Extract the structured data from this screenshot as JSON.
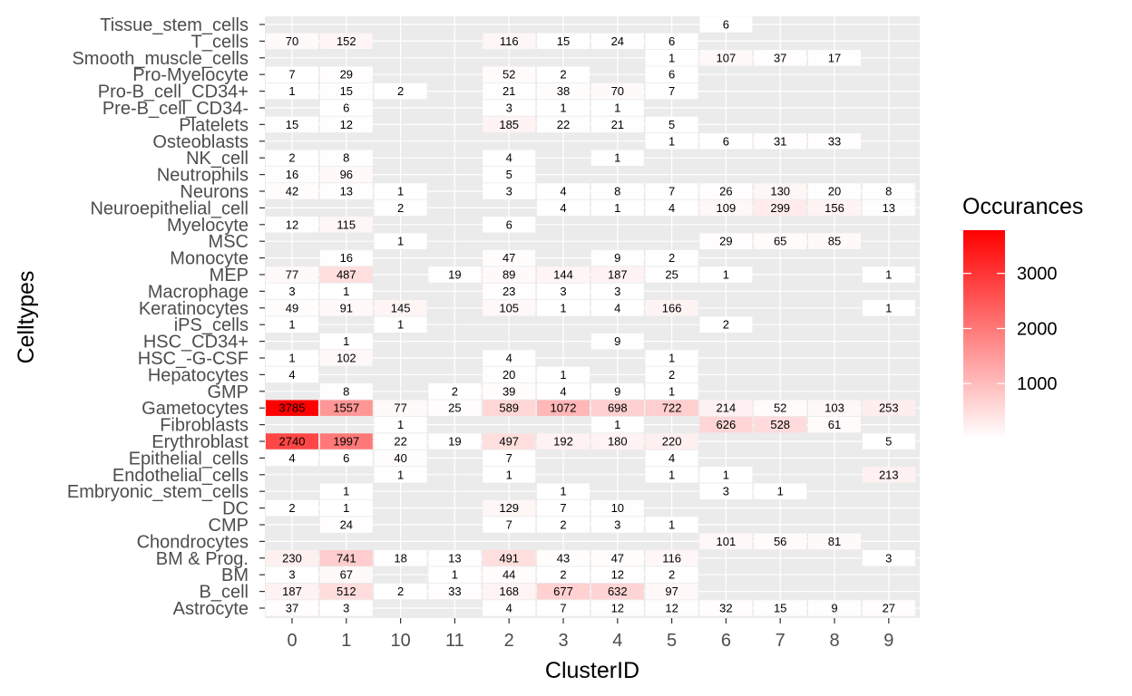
{
  "chart_data": {
    "type": "heatmap",
    "xlabel": "ClusterID",
    "ylabel": "Celltypes",
    "legend_title": "Occurances",
    "legend_position": "right",
    "legend_ticks": [
      1000,
      2000,
      3000
    ],
    "color_low": "#ffffff",
    "color_high": "#ff0000",
    "value_max": 3785,
    "panel_background": "#ebebeb",
    "x_categories": [
      "0",
      "1",
      "10",
      "11",
      "2",
      "3",
      "4",
      "5",
      "6",
      "7",
      "8",
      "9"
    ],
    "y_categories": [
      "Tissue_stem_cells",
      "T_cells",
      "Smooth_muscle_cells",
      "Pro-Myelocyte",
      "Pro-B_cell_CD34+",
      "Pre-B_cell_CD34-",
      "Platelets",
      "Osteoblasts",
      "NK_cell",
      "Neutrophils",
      "Neurons",
      "Neuroepithelial_cell",
      "Myelocyte",
      "MSC",
      "Monocyte",
      "MEP",
      "Macrophage",
      "Keratinocytes",
      "iPS_cells",
      "HSC_CD34+",
      "HSC_-G-CSF",
      "Hepatocytes",
      "GMP",
      "Gametocytes",
      "Fibroblasts",
      "Erythroblast",
      "Epithelial_cells",
      "Endothelial_cells",
      "Embryonic_stem_cells",
      "DC",
      "CMP",
      "Chondrocytes",
      "BM & Prog.",
      "BM",
      "B_cell",
      "Astrocyte"
    ],
    "values": [
      [
        null,
        null,
        null,
        null,
        null,
        null,
        null,
        null,
        6,
        null,
        null,
        null
      ],
      [
        70,
        152,
        null,
        null,
        116,
        15,
        24,
        6,
        null,
        null,
        null,
        null
      ],
      [
        null,
        null,
        null,
        null,
        null,
        null,
        null,
        1,
        107,
        37,
        17,
        null
      ],
      [
        7,
        29,
        null,
        null,
        52,
        2,
        null,
        6,
        null,
        null,
        null,
        null
      ],
      [
        1,
        15,
        2,
        null,
        21,
        38,
        70,
        7,
        null,
        null,
        null,
        null
      ],
      [
        null,
        6,
        null,
        null,
        3,
        1,
        1,
        null,
        null,
        null,
        null,
        null
      ],
      [
        15,
        12,
        null,
        null,
        185,
        22,
        21,
        5,
        null,
        null,
        null,
        null
      ],
      [
        null,
        null,
        null,
        null,
        null,
        null,
        null,
        1,
        6,
        31,
        33,
        null
      ],
      [
        2,
        8,
        null,
        null,
        4,
        null,
        1,
        null,
        null,
        null,
        null,
        null
      ],
      [
        16,
        96,
        null,
        null,
        5,
        null,
        null,
        null,
        null,
        null,
        null,
        null
      ],
      [
        42,
        13,
        1,
        null,
        3,
        4,
        8,
        7,
        26,
        130,
        20,
        8
      ],
      [
        null,
        null,
        2,
        null,
        null,
        4,
        1,
        4,
        109,
        299,
        156,
        13
      ],
      [
        12,
        115,
        null,
        null,
        6,
        null,
        null,
        null,
        null,
        null,
        null,
        null
      ],
      [
        null,
        null,
        1,
        null,
        null,
        null,
        null,
        null,
        29,
        65,
        85,
        null
      ],
      [
        null,
        16,
        null,
        null,
        47,
        null,
        9,
        2,
        null,
        null,
        null,
        null
      ],
      [
        77,
        487,
        null,
        19,
        89,
        144,
        187,
        25,
        1,
        null,
        null,
        1
      ],
      [
        3,
        1,
        null,
        null,
        23,
        3,
        3,
        null,
        null,
        null,
        null,
        null
      ],
      [
        49,
        91,
        145,
        null,
        105,
        1,
        4,
        166,
        null,
        null,
        null,
        1
      ],
      [
        1,
        null,
        1,
        null,
        null,
        null,
        null,
        null,
        2,
        null,
        null,
        null
      ],
      [
        null,
        1,
        null,
        null,
        null,
        null,
        9,
        null,
        null,
        null,
        null,
        null
      ],
      [
        1,
        102,
        null,
        null,
        4,
        null,
        null,
        1,
        null,
        null,
        null,
        null
      ],
      [
        4,
        null,
        null,
        null,
        20,
        1,
        null,
        2,
        null,
        null,
        null,
        null
      ],
      [
        null,
        8,
        null,
        2,
        39,
        4,
        9,
        1,
        null,
        null,
        null,
        null
      ],
      [
        3785,
        1557,
        77,
        25,
        589,
        1072,
        698,
        722,
        214,
        52,
        103,
        253
      ],
      [
        null,
        null,
        1,
        null,
        null,
        null,
        1,
        null,
        626,
        528,
        61,
        null
      ],
      [
        2740,
        1997,
        22,
        19,
        497,
        192,
        180,
        220,
        null,
        null,
        null,
        5
      ],
      [
        4,
        6,
        40,
        null,
        7,
        null,
        null,
        4,
        null,
        null,
        null,
        null
      ],
      [
        null,
        null,
        1,
        null,
        1,
        null,
        null,
        1,
        1,
        null,
        null,
        213
      ],
      [
        null,
        1,
        null,
        null,
        null,
        1,
        null,
        null,
        3,
        1,
        null,
        null
      ],
      [
        2,
        1,
        null,
        null,
        129,
        7,
        10,
        null,
        null,
        null,
        null,
        null
      ],
      [
        null,
        24,
        null,
        null,
        7,
        2,
        3,
        1,
        null,
        null,
        null,
        null
      ],
      [
        null,
        null,
        null,
        null,
        null,
        null,
        null,
        null,
        101,
        56,
        81,
        null
      ],
      [
        230,
        741,
        18,
        13,
        491,
        43,
        47,
        116,
        null,
        null,
        null,
        3
      ],
      [
        3,
        67,
        null,
        1,
        44,
        2,
        12,
        2,
        null,
        null,
        null,
        null
      ],
      [
        187,
        512,
        2,
        33,
        168,
        677,
        632,
        97,
        null,
        null,
        null,
        null
      ],
      [
        37,
        3,
        null,
        null,
        4,
        7,
        12,
        12,
        32,
        15,
        9,
        27
      ]
    ]
  }
}
